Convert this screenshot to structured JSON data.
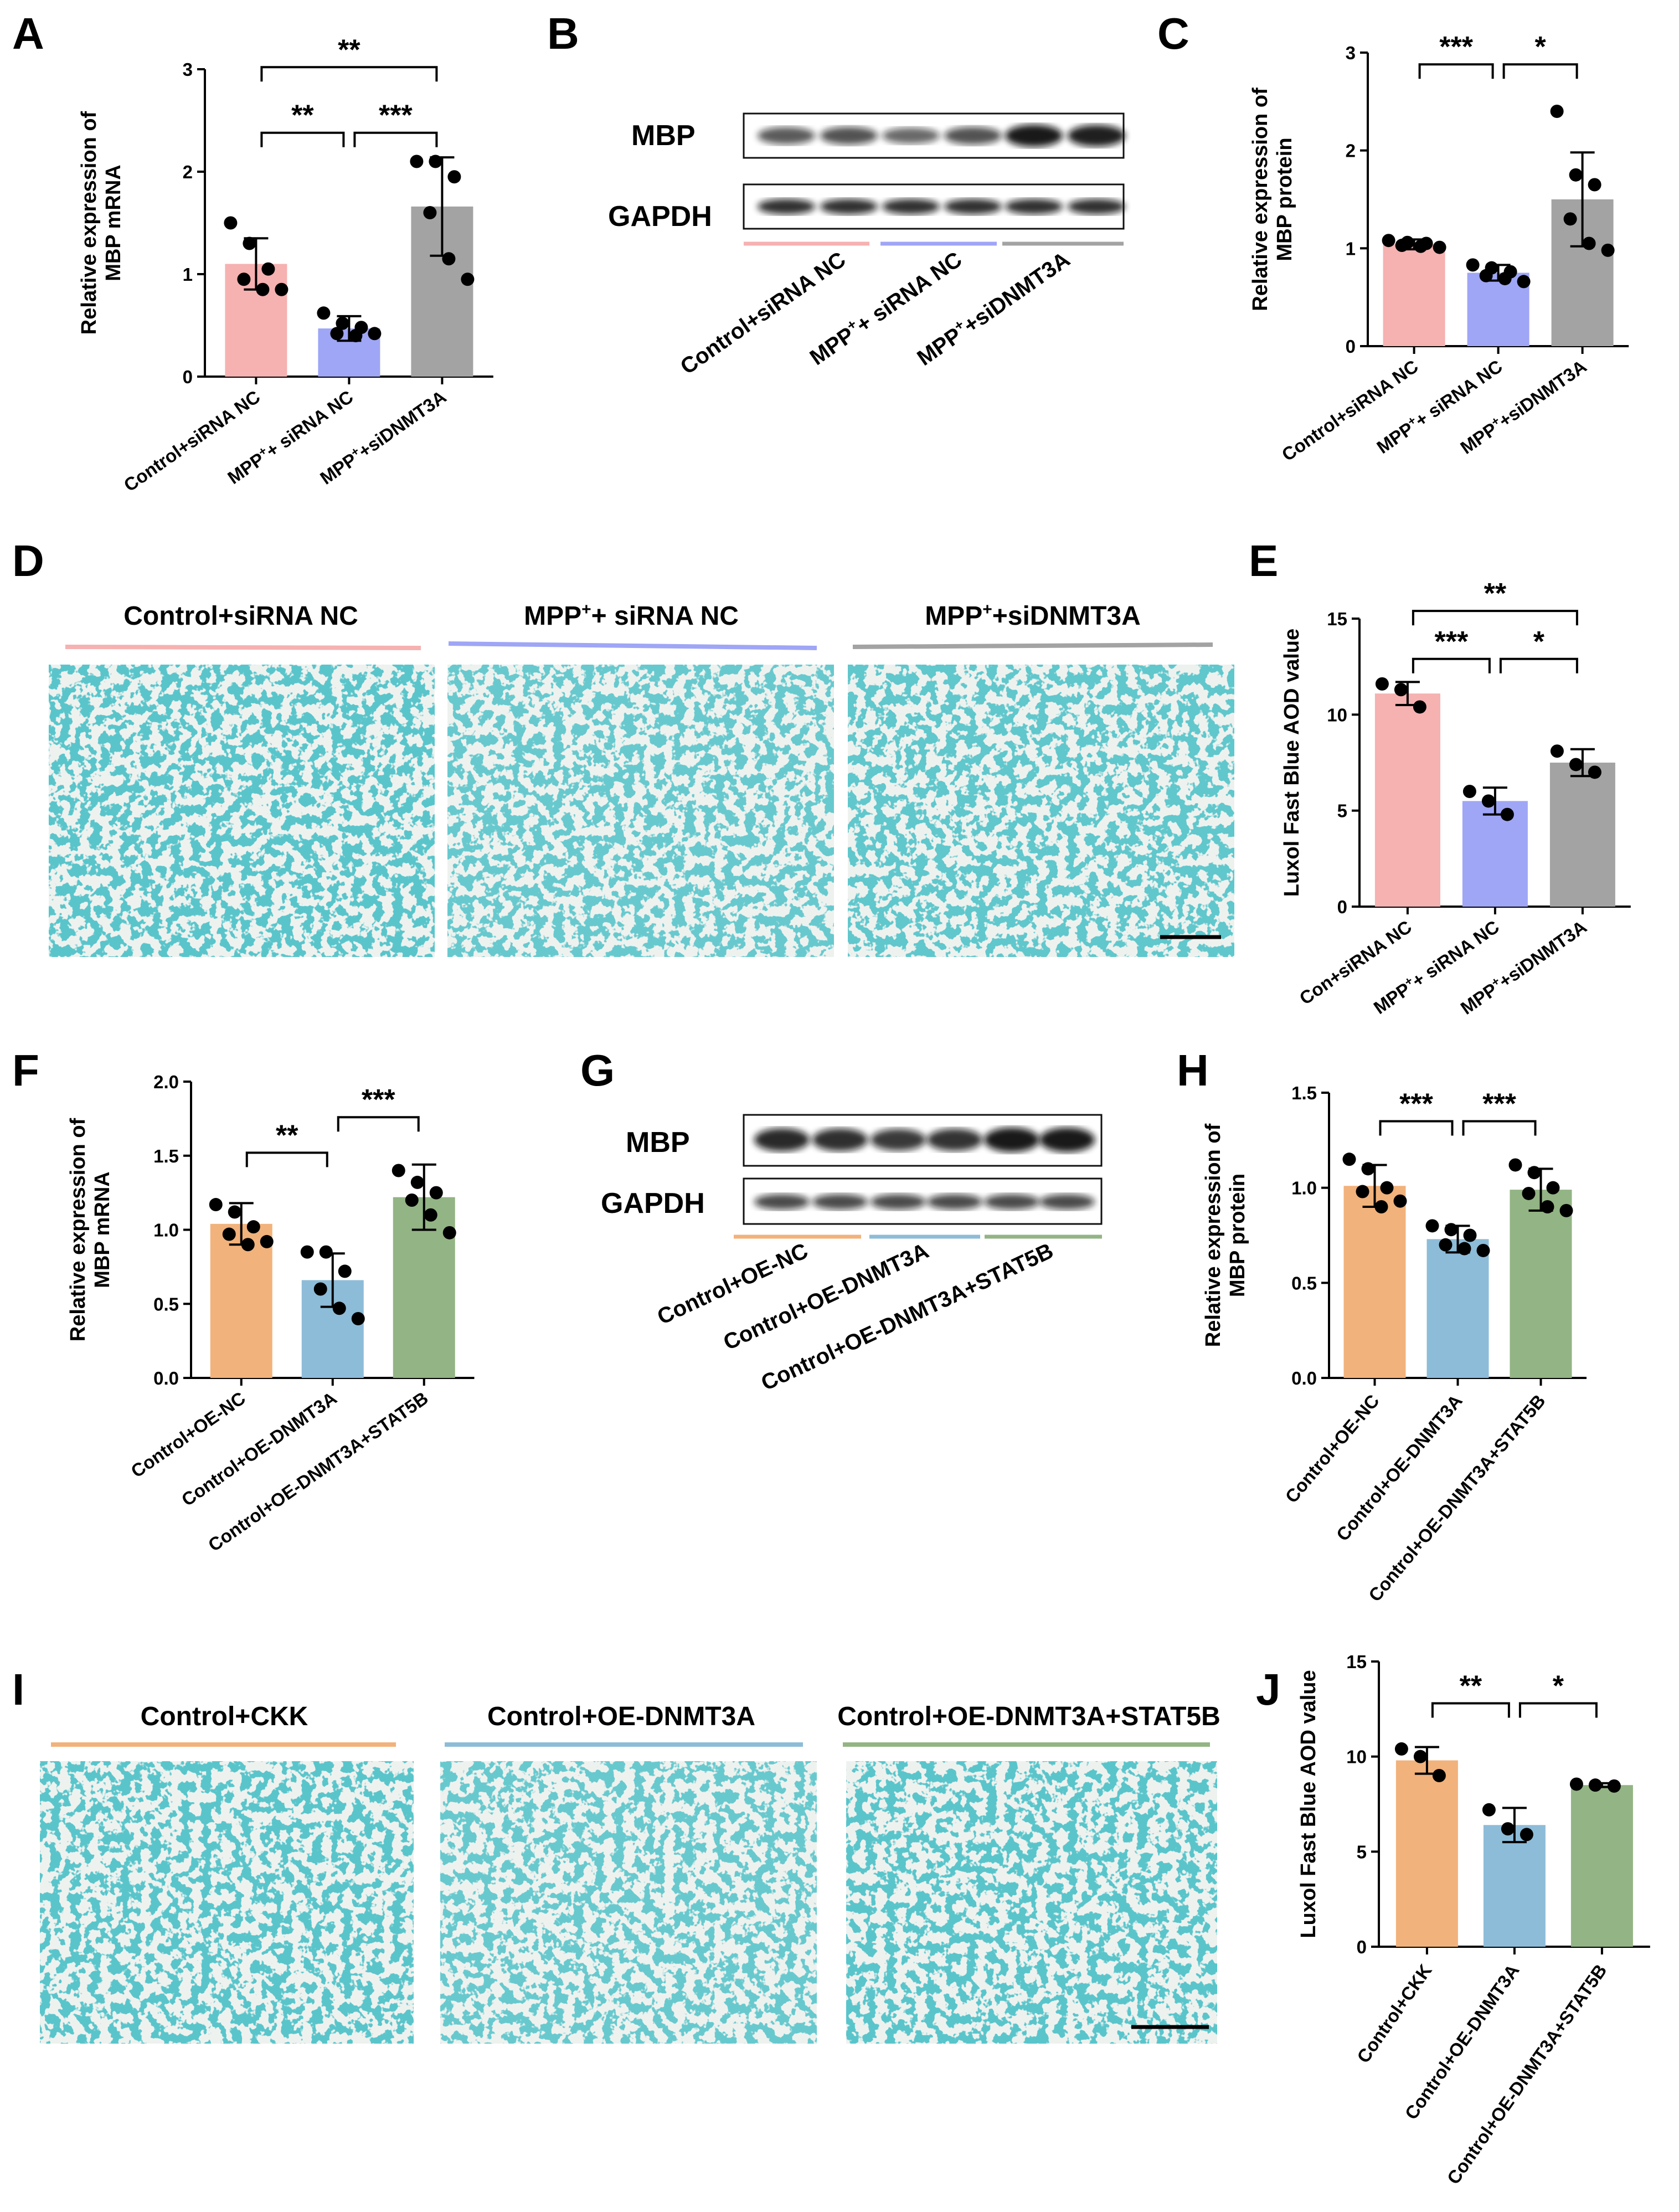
{
  "figure": {
    "panel_labels": [
      "A",
      "B",
      "C",
      "D",
      "E",
      "F",
      "G",
      "H",
      "I",
      "J"
    ],
    "superscript_plus": "+"
  },
  "colors": {
    "pink": "#f6b1b1",
    "blue": "#9fa6f6",
    "gray": "#a3a3a3",
    "orange": "#f2b27b",
    "lightblue": "#8dbcd8",
    "green": "#93b484",
    "stain": "#1a8f98",
    "stain_bg": "#eef2ef"
  },
  "blots": {
    "B": {
      "bands": [
        "MBP",
        "GAPDH"
      ],
      "groups": [
        {
          "pre": "Control+siRNA NC",
          "sup": "",
          "post": "",
          "color": "#f6b1b1"
        },
        {
          "pre": "MPP",
          "sup": "+",
          "post": "+ siRNA NC",
          "color": "#9fa6f6"
        },
        {
          "pre": "MPP",
          "sup": "+",
          "post": "+siDNMT3A",
          "color": "#a3a3a3"
        }
      ]
    },
    "G": {
      "bands": [
        "MBP",
        "GAPDH"
      ],
      "groups": [
        {
          "pre": "Control+OE-NC",
          "sup": "",
          "post": "",
          "color": "#f2b27b"
        },
        {
          "pre": "Control+OE-DNMT3A",
          "sup": "",
          "post": "",
          "color": "#8dbcd8"
        },
        {
          "pre": "Control+OE-DNMT3A+STAT5B",
          "sup": "",
          "post": "",
          "color": "#93b484"
        }
      ]
    }
  },
  "images": {
    "D": {
      "titles": [
        {
          "pre": "Control+siRNA NC",
          "sup": "",
          "post": "",
          "color": "#f6b1b1"
        },
        {
          "pre": "MPP",
          "sup": "+",
          "post": "+ siRNA NC",
          "color": "#9fa6f6"
        },
        {
          "pre": "MPP",
          "sup": "+",
          "post": "+siDNMT3A",
          "color": "#a3a3a3"
        }
      ]
    },
    "I": {
      "titles": [
        {
          "pre": "Control+CKK",
          "sup": "",
          "post": "",
          "color": "#f2b27b"
        },
        {
          "pre": "Control+OE-DNMT3A",
          "sup": "",
          "post": "",
          "color": "#8dbcd8"
        },
        {
          "pre": "Control+OE-DNMT3A+STAT5B",
          "sup": "",
          "post": "",
          "color": "#93b484"
        }
      ]
    }
  },
  "chart_data": [
    {
      "panel": "A",
      "type": "bar",
      "ylabel_lines": [
        "Relative expression of",
        "MBP mRNA"
      ],
      "ylim": [
        0,
        3
      ],
      "yticks": [
        0,
        1,
        2,
        3
      ],
      "categories": [
        {
          "pre": "Control+siRNA NC",
          "sup": "",
          "post": ""
        },
        {
          "pre": "MPP",
          "sup": "+",
          "post": "+ siRNA NC"
        },
        {
          "pre": "MPP",
          "sup": "+",
          "post": "+siDNMT3A"
        }
      ],
      "values": [
        1.1,
        0.47,
        1.66
      ],
      "errors": [
        0.25,
        0.12,
        0.48
      ],
      "colors": [
        "#f6b1b1",
        "#9fa6f6",
        "#a3a3a3"
      ],
      "points": [
        [
          1.5,
          1.3,
          1.05,
          0.95,
          0.85,
          0.85
        ],
        [
          0.62,
          0.52,
          0.48,
          0.42,
          0.4,
          0.42
        ],
        [
          2.1,
          2.1,
          1.95,
          1.6,
          1.15,
          0.95
        ]
      ],
      "significance": [
        {
          "from": 1,
          "to": 2,
          "label": "**",
          "y": 2.38
        },
        {
          "from": 2,
          "to": 3,
          "label": "***",
          "y": 2.38
        },
        {
          "from": 1,
          "to": 3,
          "label": "**",
          "y": 3.02
        }
      ]
    },
    {
      "panel": "C",
      "type": "bar",
      "ylabel_lines": [
        "Relative expression of",
        "MBP protein"
      ],
      "ylim": [
        0,
        3
      ],
      "yticks": [
        0,
        1,
        2,
        3
      ],
      "categories": [
        {
          "pre": "Control+siRNA NC",
          "sup": "",
          "post": ""
        },
        {
          "pre": "MPP",
          "sup": "+",
          "post": "+ siRNA NC"
        },
        {
          "pre": "MPP",
          "sup": "+",
          "post": "+siDNMT3A"
        }
      ],
      "values": [
        1.04,
        0.75,
        1.5
      ],
      "errors": [
        0.05,
        0.08,
        0.48
      ],
      "colors": [
        "#f6b1b1",
        "#9fa6f6",
        "#a3a3a3"
      ],
      "points": [
        [
          1.08,
          1.06,
          1.05,
          1.03,
          1.02,
          1.01
        ],
        [
          0.83,
          0.8,
          0.76,
          0.72,
          0.69,
          0.66
        ],
        [
          2.4,
          1.75,
          1.65,
          1.3,
          1.05,
          0.98
        ]
      ],
      "significance": [
        {
          "from": 1,
          "to": 2,
          "label": "***",
          "y": 2.88
        },
        {
          "from": 2,
          "to": 3,
          "label": "*",
          "y": 2.88
        }
      ]
    },
    {
      "panel": "E",
      "type": "bar",
      "ylabel_lines": [
        "Luxol Fast Blue AOD value"
      ],
      "ylim": [
        0,
        15
      ],
      "yticks": [
        0,
        5,
        10,
        15
      ],
      "categories": [
        {
          "pre": "Con+siRNA NC",
          "sup": "",
          "post": ""
        },
        {
          "pre": "MPP",
          "sup": "+",
          "post": "+ siRNA NC"
        },
        {
          "pre": "MPP",
          "sup": "+",
          "post": "+siDNMT3A"
        }
      ],
      "values": [
        11.1,
        5.5,
        7.5
      ],
      "errors": [
        0.6,
        0.7,
        0.7
      ],
      "colors": [
        "#f6b1b1",
        "#9fa6f6",
        "#a3a3a3"
      ],
      "points": [
        [
          11.6,
          11.3,
          10.4
        ],
        [
          6.0,
          5.5,
          4.8
        ],
        [
          8.1,
          7.4,
          7.0
        ]
      ],
      "significance": [
        {
          "from": 1,
          "to": 2,
          "label": "***",
          "y": 12.9
        },
        {
          "from": 2,
          "to": 3,
          "label": "*",
          "y": 12.9
        },
        {
          "from": 1,
          "to": 3,
          "label": "**",
          "y": 15.4
        }
      ]
    },
    {
      "panel": "F",
      "type": "bar",
      "ylabel_lines": [
        "Relative expression of",
        "MBP mRNA"
      ],
      "ylim": [
        0,
        2
      ],
      "yticks": [
        0.0,
        0.5,
        1.0,
        1.5,
        2.0
      ],
      "tick_decimals": 1,
      "categories": [
        {
          "pre": "Control+OE-NC",
          "sup": "",
          "post": ""
        },
        {
          "pre": "Control+OE-DNMT3A",
          "sup": "",
          "post": ""
        },
        {
          "pre": "Control+OE-DNMT3A+STAT5B",
          "sup": "",
          "post": ""
        }
      ],
      "values": [
        1.04,
        0.66,
        1.22
      ],
      "errors": [
        0.14,
        0.18,
        0.22
      ],
      "colors": [
        "#f2b27b",
        "#8dbcd8",
        "#93b484"
      ],
      "points": [
        [
          1.17,
          1.12,
          1.02,
          0.97,
          0.9,
          0.92
        ],
        [
          0.85,
          0.85,
          0.72,
          0.6,
          0.47,
          0.4
        ],
        [
          1.4,
          1.32,
          1.25,
          1.2,
          1.1,
          0.98
        ]
      ],
      "significance": [
        {
          "from": 1,
          "to": 2,
          "label": "**",
          "y": 1.52
        },
        {
          "from": 2,
          "to": 3,
          "label": "***",
          "y": 1.76
        }
      ]
    },
    {
      "panel": "H",
      "type": "bar",
      "ylabel_lines": [
        "Relative expression of",
        "MBP protein"
      ],
      "ylim": [
        0,
        1.5
      ],
      "yticks": [
        0.0,
        0.5,
        1.0,
        1.5
      ],
      "tick_decimals": 1,
      "categories": [
        {
          "pre": "Control+OE-NC",
          "sup": "",
          "post": ""
        },
        {
          "pre": "Control+OE-DNMT3A",
          "sup": "",
          "post": ""
        },
        {
          "pre": "Control+OE-DNMT3A+STAT5B",
          "sup": "",
          "post": ""
        }
      ],
      "values": [
        1.01,
        0.73,
        0.99
      ],
      "errors": [
        0.11,
        0.07,
        0.11
      ],
      "colors": [
        "#f2b27b",
        "#8dbcd8",
        "#93b484"
      ],
      "points": [
        [
          1.15,
          1.1,
          1.0,
          0.98,
          0.9,
          0.93
        ],
        [
          0.8,
          0.78,
          0.75,
          0.7,
          0.68,
          0.67
        ],
        [
          1.12,
          1.08,
          1.0,
          0.97,
          0.9,
          0.88
        ]
      ],
      "significance": [
        {
          "from": 1,
          "to": 2,
          "label": "***",
          "y": 1.35
        },
        {
          "from": 2,
          "to": 3,
          "label": "***",
          "y": 1.35
        }
      ]
    },
    {
      "panel": "J",
      "type": "bar",
      "ylabel_lines": [
        "Luxol Fast Blue AOD value"
      ],
      "ylim": [
        0,
        15
      ],
      "yticks": [
        0,
        5,
        10,
        15
      ],
      "categories": [
        {
          "pre": "Control+CKK",
          "sup": "",
          "post": ""
        },
        {
          "pre": "Control+OE-DNMT3A",
          "sup": "",
          "post": ""
        },
        {
          "pre": "Control+OE-DNMT3A+STAT5B",
          "sup": "",
          "post": ""
        }
      ],
      "values": [
        9.8,
        6.4,
        8.5
      ],
      "errors": [
        0.7,
        0.9,
        0.1
      ],
      "colors": [
        "#f2b27b",
        "#8dbcd8",
        "#93b484"
      ],
      "points": [
        [
          10.4,
          10.0,
          9.0
        ],
        [
          7.2,
          6.2,
          5.9
        ],
        [
          8.55,
          8.5,
          8.45
        ]
      ],
      "significance": [
        {
          "from": 1,
          "to": 2,
          "label": "**",
          "y": 12.8
        },
        {
          "from": 2,
          "to": 3,
          "label": "*",
          "y": 12.8
        }
      ]
    }
  ]
}
